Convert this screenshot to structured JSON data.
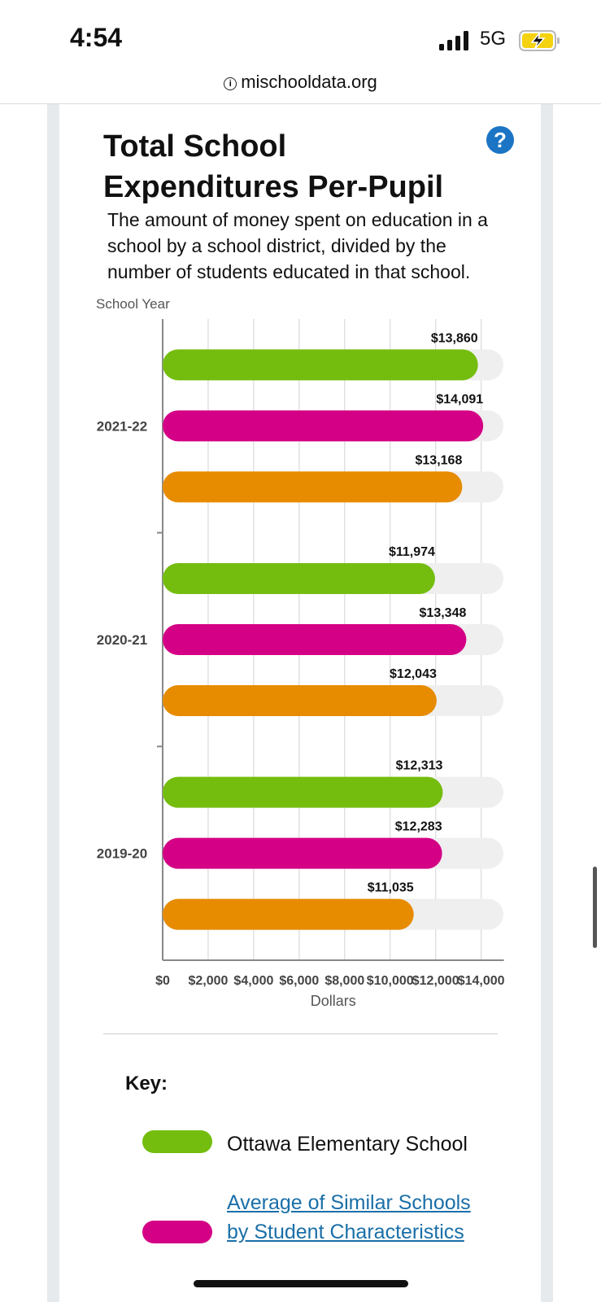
{
  "status_bar": {
    "time": "4:54",
    "network": "5G",
    "signal_icon": "signal-bars-icon",
    "battery_icon": "battery-charging-icon"
  },
  "browser": {
    "url": "mischooldata.org",
    "url_icon": "info-icon"
  },
  "section": {
    "title": "Total School Expenditures Per-Pupil",
    "help_icon_glyph": "?",
    "description": "The amount of money spent on education in a school by a school district, divided by the number of students educated in that school."
  },
  "chart_data": {
    "type": "bar",
    "orientation": "horizontal",
    "ylabel": "School Year",
    "xlabel": "Dollars",
    "xlim": [
      0,
      15000
    ],
    "x_ticks": [
      "$0",
      "$2,000",
      "$4,000",
      "$6,000",
      "$8,000",
      "$10,000",
      "$12,000",
      "$14,000"
    ],
    "grid": true,
    "categories": [
      "2021-22",
      "2020-21",
      "2019-20"
    ],
    "series": [
      {
        "name": "Ottawa Elementary School",
        "color": "#74bd0e",
        "values": [
          13860,
          11974,
          12313
        ],
        "labels": [
          "$13,860",
          "$11,974",
          "$12,313"
        ]
      },
      {
        "name": "Average of Similar Schools by Student Characteristics",
        "color": "#d40085",
        "values": [
          14091,
          13348,
          12283
        ],
        "labels": [
          "$14,091",
          "$13,348",
          "$12,283"
        ]
      },
      {
        "name": "",
        "color": "#e78b00",
        "values": [
          13168,
          12043,
          11035
        ],
        "labels": [
          "$13,168",
          "$12,043",
          "$11,035"
        ]
      }
    ],
    "track_color": "#efefef"
  },
  "key": {
    "title": "Key:",
    "items": [
      {
        "label": "Ottawa Elementary School",
        "color": "#74bd0e",
        "is_link": false
      },
      {
        "label": "Average of Similar Schools by Student Characteristics",
        "color": "#d40085",
        "is_link": true
      }
    ]
  }
}
